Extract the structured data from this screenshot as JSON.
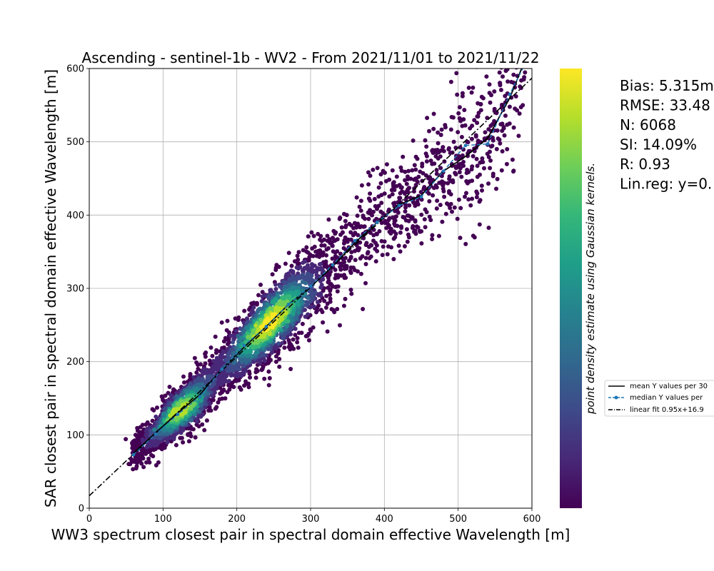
{
  "chart_data": {
    "type": "scatter",
    "title": "Ascending - sentinel-1b - WV2 - From 2021/11/01 to 2021/11/22",
    "xlabel": "WW3 spectrum closest pair in spectral domain effective Wavelength [m]",
    "ylabel": "SAR closest pair in spectral domain effective Wavelength [m]",
    "xlim": [
      0,
      600
    ],
    "ylim": [
      0,
      600
    ],
    "x_ticks": [
      "0",
      "100",
      "200",
      "300",
      "400",
      "500",
      "600"
    ],
    "y_ticks": [
      "0",
      "100",
      "200",
      "300",
      "400",
      "500",
      "600"
    ],
    "grid": true,
    "colorbar_label": "point density estimate using Gaussian kernels.",
    "colormap": [
      "#440154",
      "#482878",
      "#3e4a89",
      "#31688e",
      "#26828e",
      "#1f9e89",
      "#35b779",
      "#6ece58",
      "#b5de2b",
      "#fde725"
    ],
    "stats": [
      "Bias: 5.315m",
      "RMSE: 33.48",
      "N: 6068",
      "SI: 14.09%",
      "R: 0.93",
      "Lin.reg: y=0."
    ],
    "legend": {
      "placement": "right",
      "entries": [
        "mean Y values per 30",
        "median Y values per",
        "linear fit 0.95x+16.9"
      ]
    },
    "series": [
      {
        "name": "mean Y values per 30",
        "color": "#000000",
        "style": "solid",
        "x": [
          60,
          90,
          120,
          150,
          180,
          210,
          240,
          270,
          300,
          330,
          360,
          390,
          420,
          450,
          480,
          510,
          540,
          570,
          590
        ],
        "y": [
          75,
          103,
          130,
          155,
          190,
          220,
          248,
          278,
          302,
          330,
          362,
          390,
          414,
          427,
          460,
          480,
          505,
          560,
          610
        ]
      },
      {
        "name": "median Y values per",
        "color": "#1f77b4",
        "style": "dashed-markers",
        "x": [
          60,
          90,
          120,
          150,
          180,
          210,
          240,
          270,
          300,
          330,
          360,
          390,
          420,
          450,
          480,
          510,
          540,
          570,
          590
        ],
        "y": [
          73,
          101,
          128,
          152,
          190,
          222,
          248,
          278,
          303,
          332,
          365,
          390,
          413,
          425,
          460,
          495,
          497,
          565,
          605
        ]
      },
      {
        "name": "linear fit 0.95x+16.9",
        "color": "#000000",
        "style": "dashdot",
        "slope": 0.95,
        "intercept": 16.9
      }
    ]
  }
}
